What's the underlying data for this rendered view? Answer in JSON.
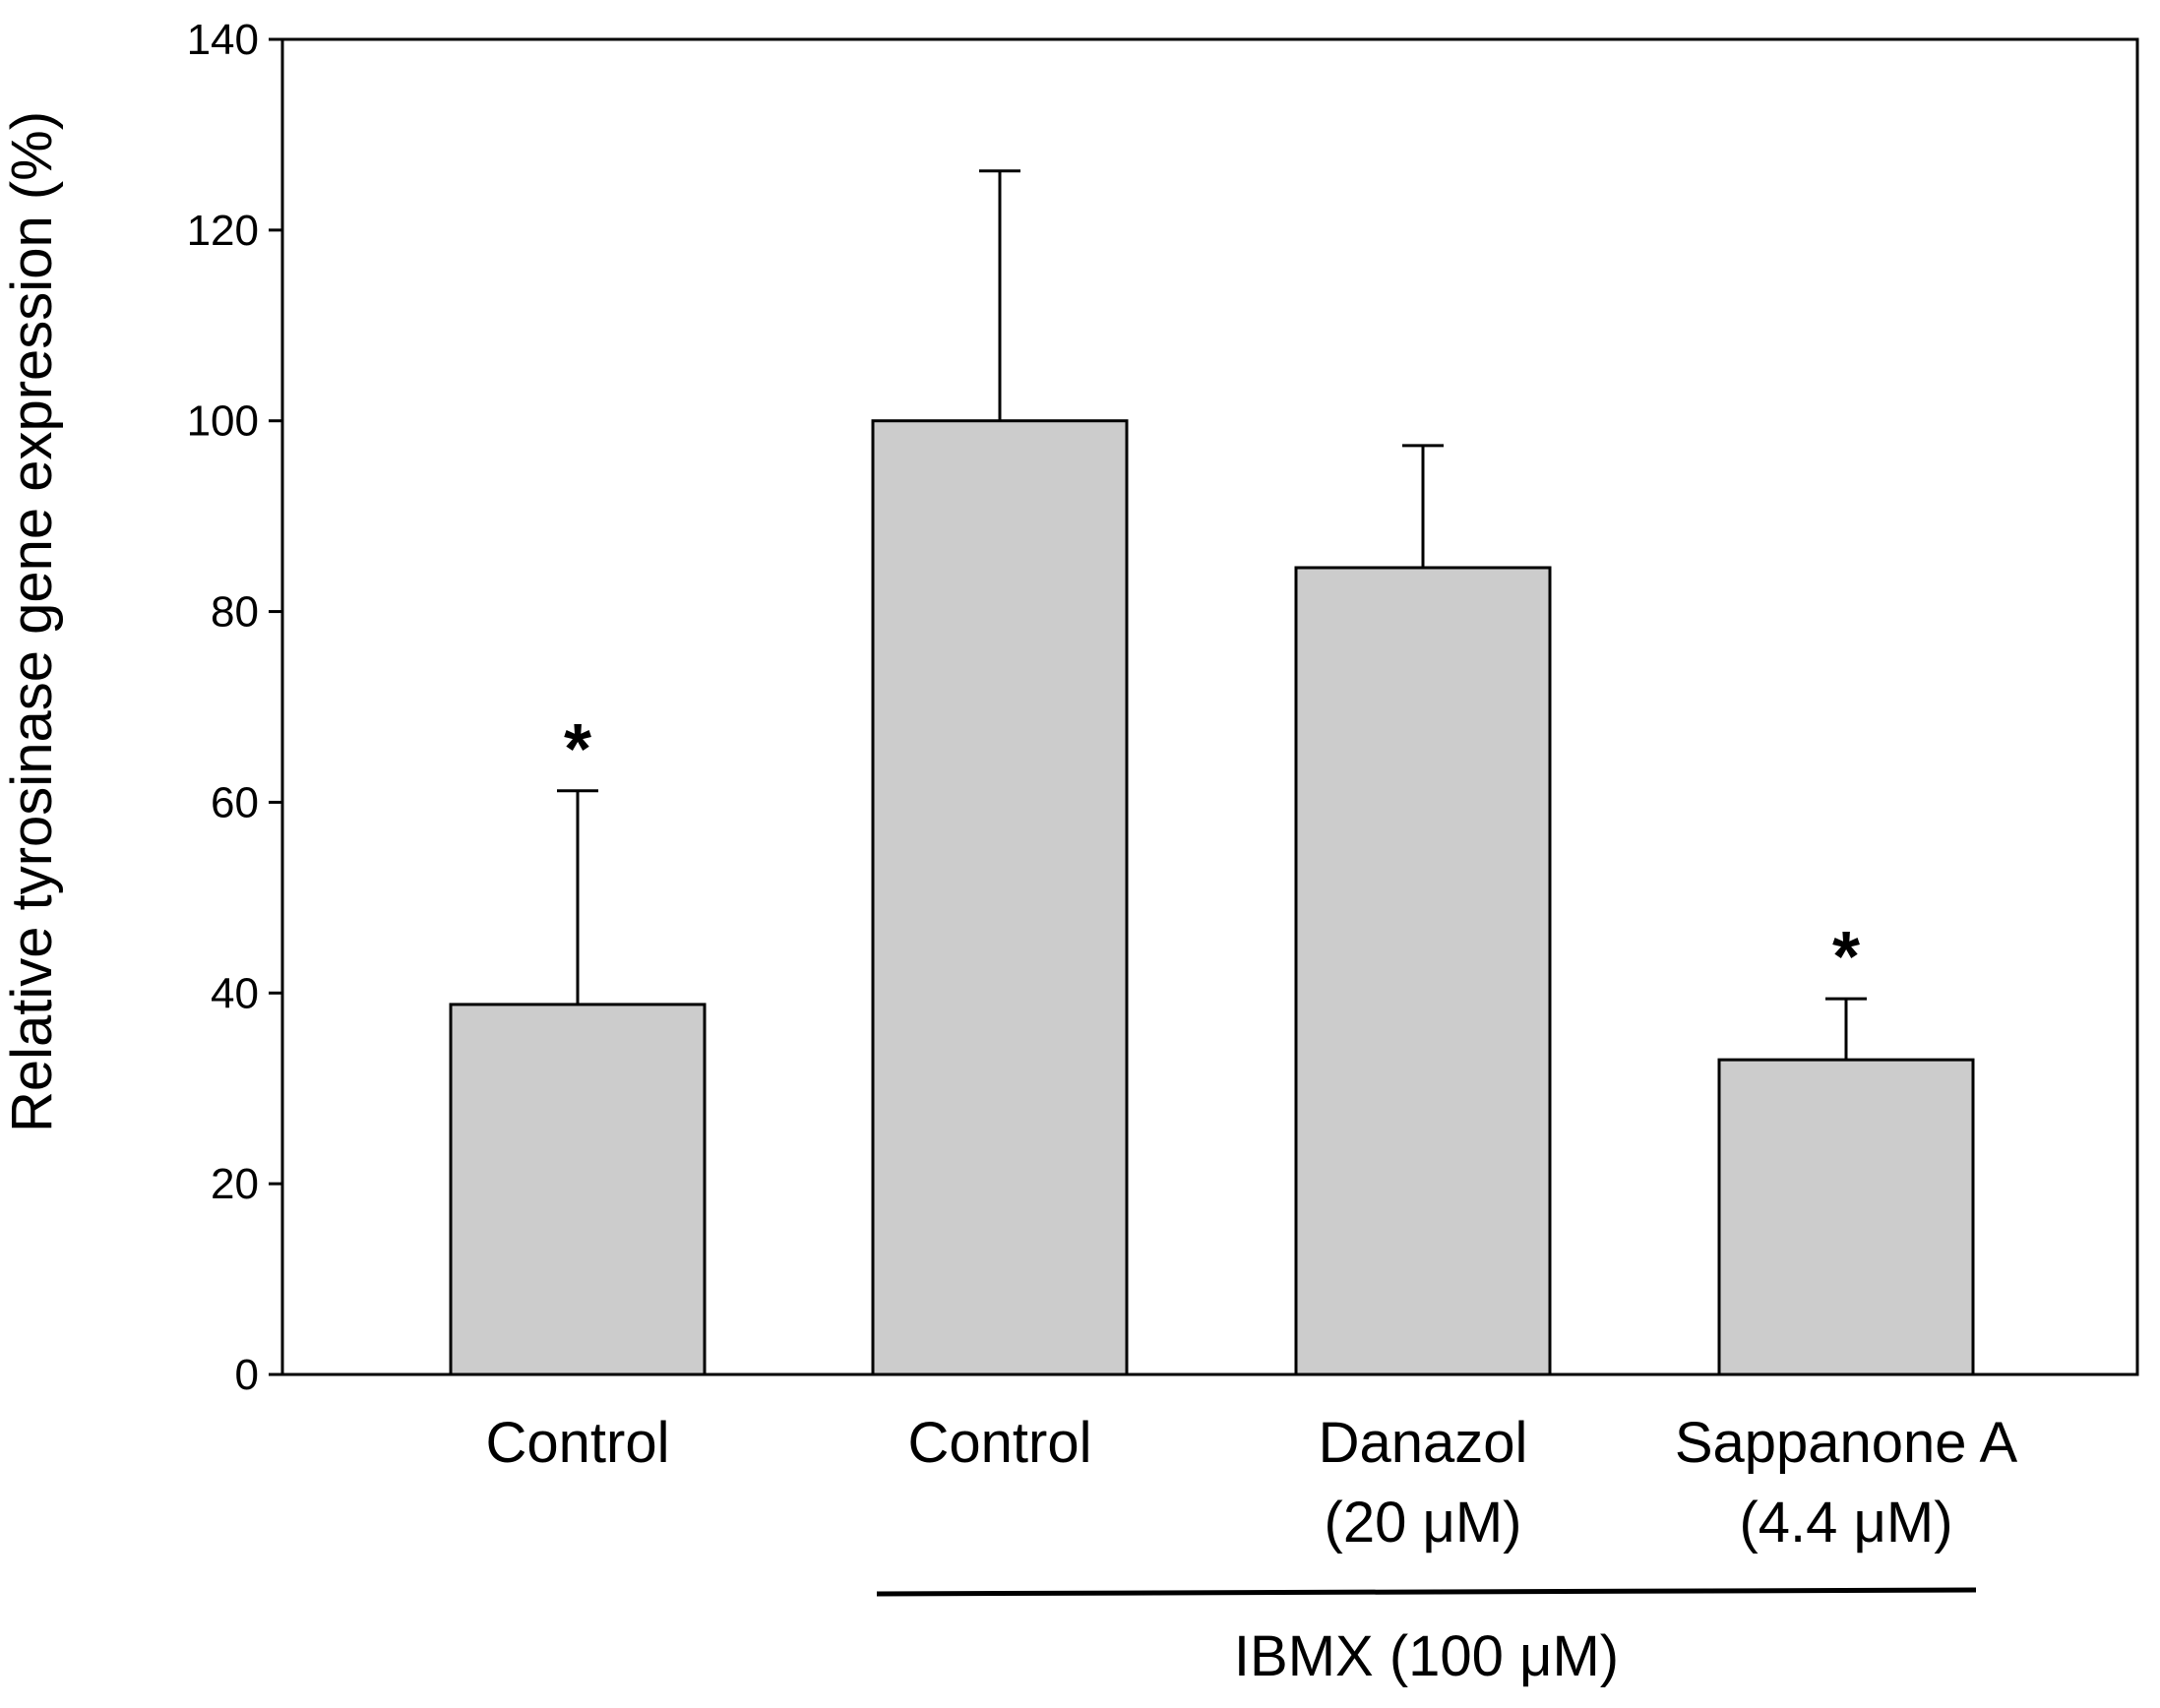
{
  "chart_data": {
    "type": "bar",
    "title": "",
    "xlabel": "",
    "ylabel": "Relative tyrosinase gene expression (%)",
    "ylim": [
      0,
      140
    ],
    "yticks": [
      "0",
      "20",
      "40",
      "60",
      "80",
      "100",
      "120",
      "140"
    ],
    "grid": false,
    "bar_color": "#cccccc",
    "categories": [
      {
        "line1": "Control",
        "line2": ""
      },
      {
        "line1": "Control",
        "line2": ""
      },
      {
        "line1": "Danazol",
        "line2": "(20 μM)"
      },
      {
        "line1": "Sappanone A",
        "line2": "(4.4 μM)"
      }
    ],
    "values": [
      38.8,
      100,
      84.6,
      33
    ],
    "errors": [
      22.4,
      26.2,
      12.8,
      6.4
    ],
    "significance": [
      "*",
      "",
      "",
      "*"
    ],
    "group": {
      "label": "IBMX (100 μM)",
      "from": 1,
      "to": 3
    }
  }
}
